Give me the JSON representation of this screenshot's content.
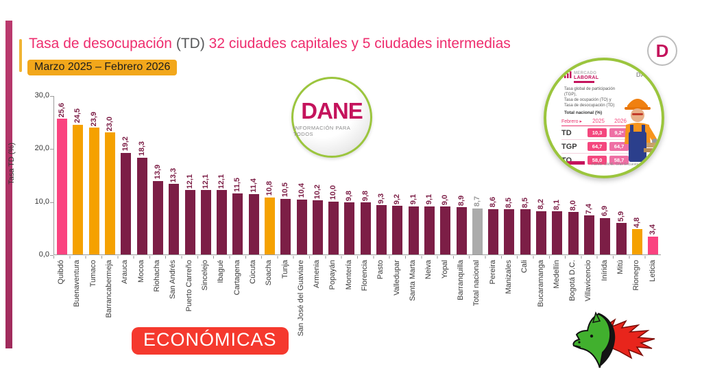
{
  "header": {
    "title_part1": "Tasa de desocupación ",
    "title_td": "(TD)",
    "title_part2": " 32 ciudades capitales y 5 ciudades intermedias",
    "subtitle": "Marzo 2025 – Febrero 2026"
  },
  "chart_data": {
    "type": "bar",
    "title": "Tasa de desocupación (TD) 32 ciudades capitales y 5 ciudades intermedias",
    "period": "Marzo 2025 – Febrero 2026",
    "ylabel": "Tasa TD (%)",
    "ylim": [
      0,
      30
    ],
    "yticks": [
      "30,0",
      "20,0",
      "10,0",
      "0,0"
    ],
    "grid": false,
    "legend": "none",
    "categories": [
      "Quibdó",
      "Buenaventura",
      "Tumaco",
      "Barrancabermeja",
      "Arauca",
      "Mocoa",
      "Riohacha",
      "San Andrés",
      "Puerto Carreño",
      "Sincelejo",
      "Ibagué",
      "Cartagena",
      "Cúcuta",
      "Soacha",
      "Tunja",
      "San José del Guaviare",
      "Armenia",
      "Popayán",
      "Montería",
      "Florencia",
      "Pasto",
      "Valledupar",
      "Santa Marta",
      "Neiva",
      "Yopal",
      "Barranquilla",
      "Total nacional",
      "Pereira",
      "Manizales",
      "Cali",
      "Bucaramanga",
      "Medellín",
      "Bogotá D.C.",
      "Villavicencio",
      "Inírida",
      "Mitú",
      "Rionegro",
      "Leticia"
    ],
    "values": [
      25.6,
      24.5,
      23.9,
      23.0,
      19.2,
      18.3,
      13.9,
      13.3,
      12.1,
      12.1,
      12.1,
      11.5,
      11.4,
      10.8,
      10.5,
      10.4,
      10.2,
      10.0,
      9.8,
      9.8,
      9.3,
      9.2,
      9.1,
      9.1,
      9.0,
      8.9,
      8.7,
      8.6,
      8.5,
      8.5,
      8.2,
      8.1,
      8.0,
      7.4,
      6.9,
      5.9,
      4.8,
      3.4
    ],
    "value_labels": [
      "25,6",
      "24,5",
      "23,9",
      "23,0",
      "19,2",
      "18,3",
      "13,9",
      "13,3",
      "12,1",
      "12,1",
      "12,1",
      "11,5",
      "11,4",
      "10,8",
      "10,5",
      "10,4",
      "10,2",
      "10,0",
      "9,8",
      "9,8",
      "9,3",
      "9,2",
      "9,1",
      "9,1",
      "9,0",
      "8,9",
      "8,7",
      "8,6",
      "8,5",
      "8,5",
      "8,2",
      "8,1",
      "8,0",
      "7,4",
      "6,9",
      "5,9",
      "4,8",
      "3,4"
    ],
    "color_keys": [
      "pink",
      "orange",
      "orange",
      "orange",
      "maroon",
      "maroon",
      "maroon",
      "maroon",
      "maroon",
      "maroon",
      "maroon",
      "maroon",
      "maroon",
      "orange",
      "maroon",
      "maroon",
      "maroon",
      "maroon",
      "maroon",
      "maroon",
      "maroon",
      "maroon",
      "maroon",
      "maroon",
      "maroon",
      "maroon",
      "gray",
      "maroon",
      "maroon",
      "maroon",
      "maroon",
      "maroon",
      "maroon",
      "maroon",
      "maroon",
      "maroon",
      "orange",
      "pink"
    ],
    "bar_colors": {
      "pink": "#FA4380",
      "orange": "#F5A100",
      "maroon": "#7C1E46",
      "gray": "#ABABAB"
    },
    "value_label_color": "#7C1E46",
    "value_label_color_gray": "#9a9a9a"
  },
  "dane_logo": {
    "name": "DANE",
    "tagline": "INFORMACIÓN PARA TODOS"
  },
  "inset": {
    "brand_top": "MERCADO",
    "brand_bottom": "LABORAL",
    "dane_partial": "DA",
    "desc_line1": "Tasa global de participación (TGP),",
    "desc_line2": "Tasa de ocupación (TO) y",
    "desc_line3": "Tasa de desocupación (TD)",
    "bold_line": "Total nacional (%)",
    "col_label": "Febrero ▸",
    "year1": "2025",
    "year2": "2026",
    "rows": [
      {
        "label": "TD",
        "v1": "10,3",
        "v2": "9,2*"
      },
      {
        "label": "TGP",
        "v1": "64,7",
        "v2": "64,7"
      },
      {
        "label": "TO",
        "v1": "58,0",
        "v2": "58,7"
      }
    ],
    "footer": "Fuente: DANE, Gran Encuesta"
  },
  "corner_logo": {
    "letter": "D"
  },
  "badge": {
    "label": "ECONÓMICAS"
  }
}
